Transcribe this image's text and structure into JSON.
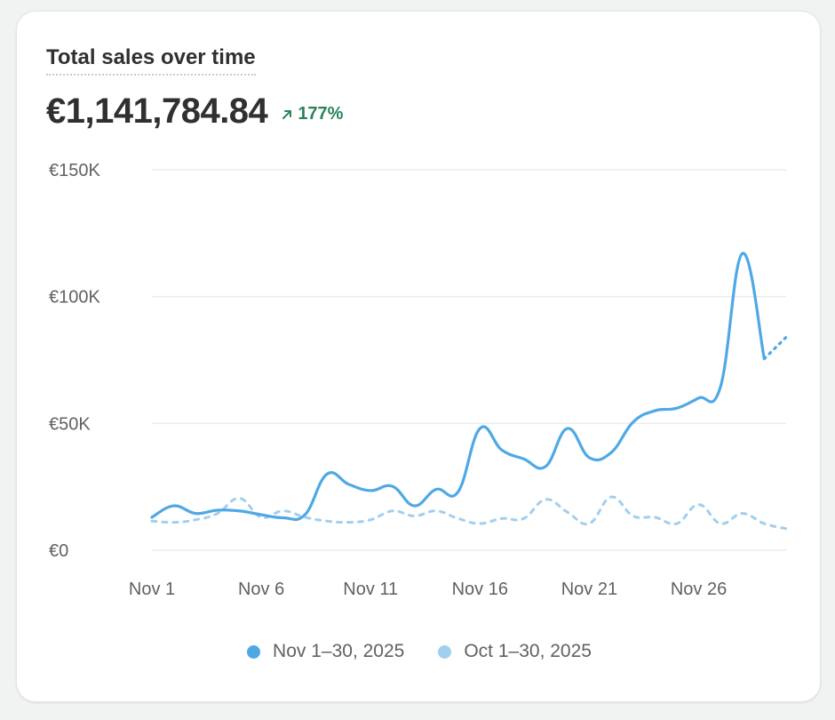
{
  "card": {
    "title": "Total sales over time",
    "total": "€1,141,784.84",
    "change": "177%",
    "change_icon": "arrow-up-right-icon",
    "change_color": "#29845a"
  },
  "chart_data": {
    "type": "line",
    "title": "",
    "xlabel": "",
    "ylabel": "",
    "ylim": [
      0,
      150000
    ],
    "y_ticks": [
      0,
      50000,
      100000,
      150000
    ],
    "y_tick_labels": [
      "€0",
      "€50K",
      "€100K",
      "€150K"
    ],
    "x_tick_labels": [
      {
        "day": 1,
        "label": "Nov 1"
      },
      {
        "day": 6,
        "label": "Nov 6"
      },
      {
        "day": 11,
        "label": "Nov 11"
      },
      {
        "day": 16,
        "label": "Nov 16"
      },
      {
        "day": 21,
        "label": "Nov 21"
      },
      {
        "day": 26,
        "label": "Nov 26"
      }
    ],
    "grid": true,
    "legend_position": "bottom-center",
    "series": [
      {
        "name": "Nov 1–30, 2025",
        "color": "#4fa8e6",
        "style": "solid",
        "partial_last_point": true,
        "x": [
          1,
          2,
          3,
          4,
          5,
          6,
          7,
          8,
          9,
          10,
          11,
          12,
          13,
          14,
          15,
          16,
          17,
          18,
          19,
          20,
          21,
          22,
          23,
          24,
          25,
          26,
          27,
          28,
          29,
          30
        ],
        "values": [
          13000,
          17500,
          14500,
          15800,
          15500,
          14000,
          12800,
          14000,
          30000,
          26000,
          23500,
          25200,
          17500,
          24000,
          23000,
          48000,
          39500,
          36000,
          33000,
          48000,
          36500,
          38500,
          50500,
          55000,
          56000,
          60000,
          64500,
          117000,
          75500,
          84000
        ]
      },
      {
        "name": "Oct 1–30, 2025",
        "color": "#a1cfee",
        "style": "dashed",
        "x": [
          1,
          2,
          3,
          4,
          5,
          6,
          7,
          8,
          9,
          10,
          11,
          12,
          13,
          14,
          15,
          16,
          17,
          18,
          19,
          20,
          21,
          22,
          23,
          24,
          25,
          26,
          27,
          28,
          29,
          30
        ],
        "values": [
          11500,
          11000,
          12000,
          14500,
          20500,
          13000,
          15500,
          13000,
          11500,
          11000,
          12000,
          15500,
          13500,
          15500,
          12500,
          10500,
          12500,
          12500,
          20000,
          15000,
          10500,
          21000,
          13500,
          13000,
          10500,
          18000,
          10500,
          14500,
          10500,
          8500
        ]
      }
    ]
  }
}
